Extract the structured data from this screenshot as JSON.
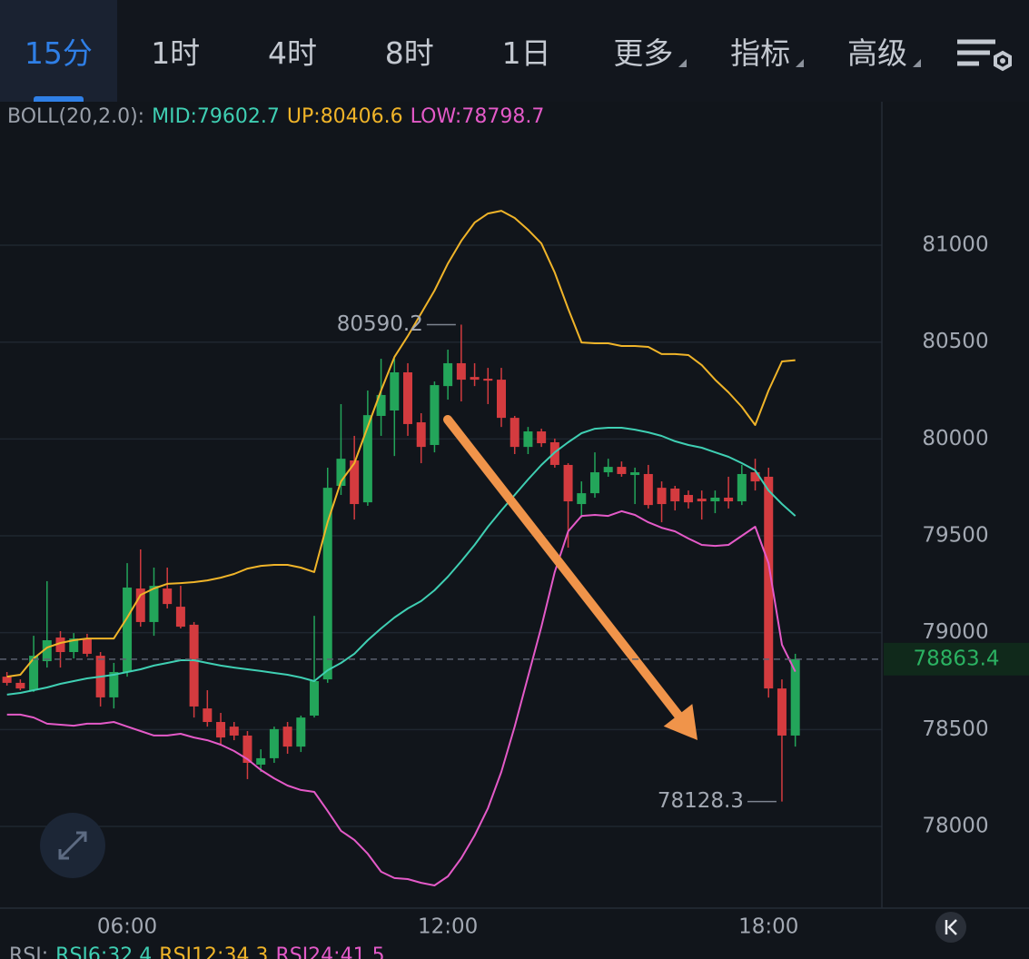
{
  "tabs": {
    "items": [
      "15分",
      "1时",
      "4时",
      "8时",
      "1日",
      "更多",
      "指标",
      "高级"
    ]
  },
  "indicator": {
    "label": "BOLL(20,2.0):"
  },
  "chart_data": {
    "type": "candlestick",
    "x": [
      3.75,
      4,
      4.25,
      4.5,
      4.75,
      5,
      5.25,
      5.5,
      5.75,
      6,
      6.25,
      6.5,
      6.75,
      7,
      7.25,
      7.5,
      7.75,
      8,
      8.25,
      8.5,
      8.75,
      9,
      9.25,
      9.5,
      9.75,
      10,
      10.25,
      10.5,
      10.75,
      11,
      11.25,
      11.5,
      11.75,
      12,
      12.25,
      12.5,
      12.75,
      13,
      13.25,
      13.5,
      13.75,
      14,
      14.25,
      14.5,
      14.75,
      15,
      15.25,
      15.5,
      15.75,
      16,
      16.25,
      16.5,
      16.75,
      17,
      17.25,
      17.5,
      17.75,
      18,
      18.25,
      18.5
    ],
    "open": [
      78773,
      78741,
      78703,
      78853,
      78975,
      78900,
      78970,
      78881,
      78666,
      78797,
      79228,
      79055,
      79228,
      79134,
      79041,
      78609,
      78539,
      78515,
      78469,
      78319,
      78352,
      78515,
      78412,
      78572,
      78759,
      79758,
      79889,
      79673,
      80119,
      80147,
      80344,
      80086,
      79969,
      80273,
      80391,
      80320,
      80311,
      80306,
      80109,
      79959,
      80039,
      79983,
      79866,
      79664,
      79720,
      79828,
      79856,
      79814,
      79819,
      79748,
      79744,
      79711,
      79692,
      79678,
      79697,
      79678,
      79828,
      79805,
      78712,
      78469
    ],
    "high": [
      78797,
      78759,
      78984,
      79266,
      79008,
      78998,
      78994,
      78900,
      78844,
      79359,
      79430,
      79336,
      79336,
      79242,
      79055,
      78703,
      78586,
      78539,
      78492,
      78398,
      78515,
      78539,
      78572,
      79087,
      79852,
      80180,
      80016,
      80250,
      80414,
      80414,
      80391,
      80133,
      80297,
      80461,
      80590.2,
      80391,
      80367,
      80367,
      80119,
      80062,
      80053,
      80002,
      79875,
      79781,
      79931,
      79898,
      79884,
      79852,
      79866,
      79781,
      79758,
      79734,
      79734,
      79734,
      79805,
      79866,
      79898,
      79852,
      78759,
      78891
    ],
    "low": [
      78727,
      78703,
      78694,
      78820,
      78820,
      78867,
      78876,
      78619,
      78609,
      78773,
      79031,
      78984,
      79125,
      79022,
      78562,
      78515,
      78422,
      78445,
      78244,
      78281,
      78328,
      78375,
      78384,
      78562,
      78741,
      79711,
      79584,
      79655,
      80016,
      79912,
      80016,
      79875,
      79931,
      80203,
      80194,
      80273,
      80180,
      80062,
      79922,
      79922,
      79959,
      79852,
      79439,
      79594,
      79697,
      79805,
      79805,
      79664,
      79641,
      79570,
      79631,
      79641,
      79584,
      79617,
      79641,
      79659,
      79734,
      78665,
      78128.3,
      78412
    ],
    "close": [
      78741,
      78712,
      78881,
      78961,
      78900,
      78970,
      78891,
      78666,
      78797,
      79233,
      79055,
      79242,
      79148,
      79031,
      78619,
      78539,
      78459,
      78469,
      78328,
      78352,
      78502,
      78412,
      78562,
      78750,
      79748,
      79898,
      79664,
      80123,
      80227,
      80344,
      80077,
      79959,
      80278,
      80391,
      80306,
      80306,
      80301,
      80109,
      79959,
      80039,
      79978,
      79866,
      79678,
      79720,
      79828,
      79856,
      79819,
      79828,
      79659,
      79664,
      79678,
      79673,
      79678,
      79697,
      79678,
      79819,
      79781,
      78712,
      78469,
      78863.4
    ],
    "up_color": "#23a55a",
    "down_color": "#d43b3f",
    "series": [
      {
        "name": "MID:79602.7",
        "color": "#3fcfb3",
        "values": [
          78680,
          78689,
          78703,
          78717,
          78736,
          78750,
          78764,
          78773,
          78783,
          78797,
          78811,
          78830,
          78844,
          78858,
          78858,
          78844,
          78830,
          78820,
          78811,
          78802,
          78792,
          78783,
          78769,
          78750,
          78806,
          78844,
          78891,
          78961,
          79022,
          79078,
          79125,
          79163,
          79219,
          79289,
          79369,
          79453,
          79547,
          79631,
          79711,
          79791,
          79866,
          79931,
          79983,
          80030,
          80053,
          80058,
          80058,
          80048,
          80034,
          80016,
          79988,
          79969,
          79955,
          79931,
          79908,
          79875,
          79838,
          79734,
          79664,
          79602.7
        ]
      },
      {
        "name": "UP:80406.6",
        "color": "#f0b429",
        "values": [
          78773,
          78783,
          78867,
          78923,
          78947,
          78961,
          78970,
          78970,
          78970,
          79078,
          79195,
          79228,
          79252,
          79256,
          79261,
          79270,
          79284,
          79303,
          79331,
          79345,
          79350,
          79350,
          79336,
          79313,
          79570,
          79781,
          79875,
          80063,
          80250,
          80423,
          80531,
          80648,
          80766,
          80906,
          81023,
          81117,
          81164,
          81178,
          81141,
          81080,
          81009,
          80859,
          80672,
          80498,
          80494,
          80494,
          80480,
          80480,
          80475,
          80438,
          80438,
          80433,
          80381,
          80306,
          80241,
          80166,
          80072,
          80250,
          80400,
          80406.6
        ]
      },
      {
        "name": "LOW:78798.7",
        "color": "#e45ac8",
        "values": [
          78577,
          78577,
          78562,
          78530,
          78525,
          78520,
          78530,
          78530,
          78539,
          78515,
          78492,
          78469,
          78469,
          78478,
          78459,
          78445,
          78422,
          78389,
          78347,
          78291,
          78248,
          78211,
          78188,
          78178,
          78080,
          77977,
          77930,
          77859,
          77766,
          77733,
          77728,
          77709,
          77695,
          77742,
          77836,
          77953,
          78094,
          78281,
          78515,
          78773,
          79031,
          79313,
          79523,
          79603,
          79608,
          79603,
          79627,
          79608,
          79570,
          79542,
          79523,
          79486,
          79453,
          79448,
          79453,
          79500,
          79547,
          79359,
          78938,
          78798.7
        ]
      }
    ],
    "xlim": [
      3.62,
      20.12
    ],
    "xticks": [
      {
        "value": 6,
        "label": "06:00"
      },
      {
        "value": 12,
        "label": "12:00"
      },
      {
        "value": 18,
        "label": "18:00"
      }
    ],
    "ylim": [
      77578,
      81741
    ],
    "yticks": [
      78000,
      78500,
      79000,
      79500,
      80000,
      80500,
      81000
    ],
    "grid": true
  },
  "rsi": {
    "label": "RSI:",
    "items": [
      {
        "text": "RSI6:32.4",
        "color": "#3fcfb3"
      },
      {
        "text": "RSI12:34.3",
        "color": "#f0b429"
      },
      {
        "text": "RSI24:41.5",
        "color": "#e45ac8"
      }
    ]
  }
}
